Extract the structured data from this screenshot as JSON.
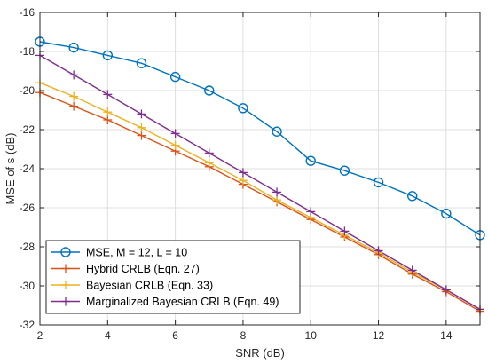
{
  "chart_data": {
    "type": "line",
    "xlabel": "SNR (dB)",
    "ylabel": "MSE of s (dB)",
    "xlim": [
      2,
      15
    ],
    "ylim": [
      -32,
      -16
    ],
    "xticks": [
      2,
      4,
      6,
      8,
      10,
      12,
      14
    ],
    "yticks": [
      -16,
      -18,
      -20,
      -22,
      -24,
      -26,
      -28,
      -30,
      -32
    ],
    "grid": true,
    "legend_position": "bottom-left",
    "x": [
      2,
      3,
      4,
      5,
      6,
      7,
      8,
      9,
      10,
      11,
      12,
      13,
      14,
      15
    ],
    "series": [
      {
        "name": "MSE, M = 12, L = 10",
        "color": "#0072BD",
        "marker": "circle",
        "values": [
          -17.5,
          -17.8,
          -18.2,
          -18.6,
          -19.3,
          -20.0,
          -20.9,
          -22.1,
          -23.6,
          -24.1,
          -24.7,
          -25.4,
          -26.3,
          -27.4
        ]
      },
      {
        "name": "Hybrid CRLB (Eqn. 27)",
        "color": "#D95319",
        "marker": "plus",
        "values": [
          -20.1,
          -20.8,
          -21.5,
          -22.3,
          -23.1,
          -23.9,
          -24.8,
          -25.7,
          -26.6,
          -27.5,
          -28.4,
          -29.4,
          -30.3,
          -31.3
        ]
      },
      {
        "name": "Bayesian CRLB (Eqn. 33)",
        "color": "#EDB120",
        "marker": "plus",
        "values": [
          -19.6,
          -20.3,
          -21.1,
          -21.9,
          -22.8,
          -23.7,
          -24.6,
          -25.6,
          -26.5,
          -27.4,
          -28.3,
          -29.3,
          -30.2,
          -31.2
        ]
      },
      {
        "name": "Marginalized Bayesian CRLB (Eqn. 49)",
        "color": "#7E2F8E",
        "marker": "plus",
        "values": [
          -18.2,
          -19.2,
          -20.2,
          -21.2,
          -22.2,
          -23.2,
          -24.2,
          -25.2,
          -26.2,
          -27.2,
          -28.2,
          -29.2,
          -30.2,
          -31.2
        ]
      }
    ]
  }
}
